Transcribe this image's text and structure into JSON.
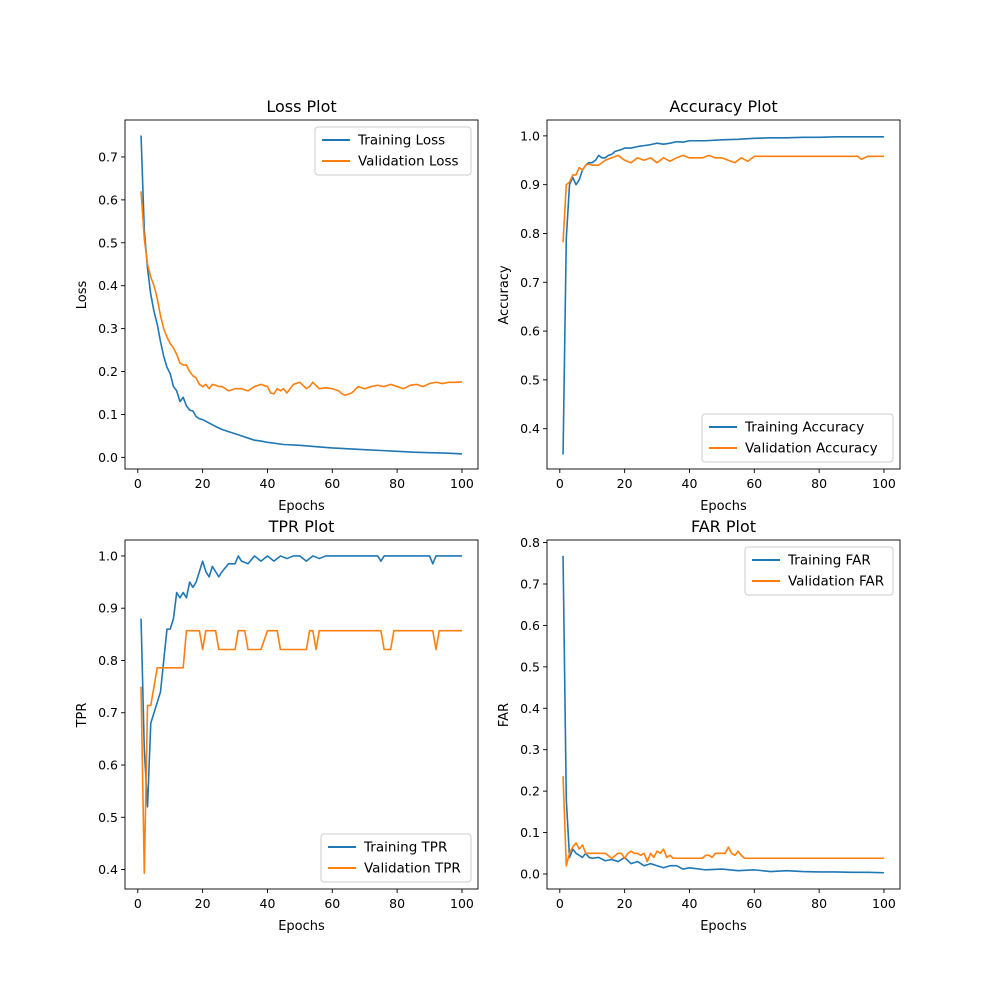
{
  "figure": {
    "background": "#ffffff"
  },
  "colors": {
    "training": "#1f77b4",
    "validation": "#ff7f0e"
  },
  "chart_data": [
    {
      "type": "line",
      "title": "Loss Plot",
      "xlabel": "Epochs",
      "ylabel": "Loss",
      "xlim": [
        -3.95,
        104.95
      ],
      "ylim": [
        -0.0271,
        0.7861
      ],
      "xticks": [
        0,
        20,
        40,
        60,
        80,
        100
      ],
      "yticks": [
        0.0,
        0.1,
        0.2,
        0.3,
        0.4,
        0.5,
        0.6,
        0.7
      ],
      "ytick_labels": [
        "0.0",
        "0.1",
        "0.2",
        "0.3",
        "0.4",
        "0.5",
        "0.6",
        "0.7"
      ],
      "legend": "top-right",
      "grid": false,
      "series": [
        {
          "name": "Training Loss",
          "color": "#1f77b4",
          "x": [
            1,
            2,
            3,
            4,
            5,
            6,
            7,
            8,
            9,
            10,
            11,
            12,
            13,
            14,
            15,
            16,
            17,
            18,
            19,
            20,
            22,
            24,
            26,
            28,
            30,
            32,
            34,
            36,
            38,
            40,
            45,
            50,
            55,
            60,
            65,
            70,
            75,
            80,
            85,
            90,
            95,
            100
          ],
          "y": [
            0.75,
            0.53,
            0.44,
            0.38,
            0.34,
            0.31,
            0.27,
            0.235,
            0.21,
            0.195,
            0.165,
            0.155,
            0.13,
            0.14,
            0.12,
            0.11,
            0.108,
            0.095,
            0.09,
            0.088,
            0.08,
            0.072,
            0.065,
            0.06,
            0.055,
            0.05,
            0.045,
            0.04,
            0.038,
            0.035,
            0.03,
            0.028,
            0.025,
            0.022,
            0.02,
            0.018,
            0.016,
            0.014,
            0.012,
            0.011,
            0.01,
            0.008
          ]
        },
        {
          "name": "Validation Loss",
          "color": "#ff7f0e",
          "x": [
            1,
            2,
            3,
            4,
            5,
            6,
            7,
            8,
            9,
            10,
            11,
            12,
            13,
            14,
            15,
            16,
            17,
            18,
            19,
            20,
            21,
            22,
            23,
            24,
            25,
            26,
            28,
            30,
            32,
            34,
            36,
            38,
            40,
            41,
            42,
            43,
            44,
            45,
            46,
            47,
            48,
            50,
            52,
            53,
            54,
            56,
            58,
            60,
            62,
            63,
            64,
            66,
            68,
            70,
            72,
            74,
            76,
            78,
            80,
            82,
            84,
            86,
            88,
            90,
            92,
            94,
            96,
            98,
            100
          ],
          "y": [
            0.62,
            0.51,
            0.45,
            0.42,
            0.4,
            0.37,
            0.33,
            0.3,
            0.28,
            0.265,
            0.255,
            0.24,
            0.22,
            0.215,
            0.215,
            0.2,
            0.19,
            0.185,
            0.17,
            0.165,
            0.17,
            0.16,
            0.17,
            0.168,
            0.165,
            0.165,
            0.155,
            0.16,
            0.16,
            0.155,
            0.165,
            0.17,
            0.165,
            0.15,
            0.148,
            0.16,
            0.155,
            0.16,
            0.15,
            0.16,
            0.17,
            0.175,
            0.16,
            0.165,
            0.175,
            0.16,
            0.162,
            0.16,
            0.155,
            0.148,
            0.145,
            0.15,
            0.165,
            0.16,
            0.165,
            0.168,
            0.165,
            0.17,
            0.165,
            0.16,
            0.168,
            0.17,
            0.165,
            0.172,
            0.175,
            0.172,
            0.175,
            0.175,
            0.176
          ]
        }
      ]
    },
    {
      "type": "line",
      "title": "Accuracy Plot",
      "xlabel": "Epochs",
      "ylabel": "Accuracy",
      "xlim": [
        -3.95,
        104.95
      ],
      "ylim": [
        0.3174,
        1.0325
      ],
      "xticks": [
        0,
        20,
        40,
        60,
        80,
        100
      ],
      "yticks": [
        0.4,
        0.5,
        0.6,
        0.7,
        0.8,
        0.9,
        1.0
      ],
      "ytick_labels": [
        "0.4",
        "0.5",
        "0.6",
        "0.7",
        "0.8",
        "0.9",
        "1.0"
      ],
      "legend": "bottom-right",
      "grid": false,
      "series": [
        {
          "name": "Training Accuracy",
          "color": "#1f77b4",
          "x": [
            1,
            2,
            3,
            4,
            5,
            6,
            7,
            8,
            9,
            10,
            11,
            12,
            13,
            14,
            15,
            16,
            17,
            18,
            19,
            20,
            22,
            24,
            26,
            28,
            30,
            32,
            34,
            36,
            38,
            40,
            45,
            50,
            55,
            60,
            65,
            70,
            75,
            80,
            85,
            90,
            95,
            100
          ],
          "y": [
            0.347,
            0.79,
            0.9,
            0.915,
            0.9,
            0.91,
            0.93,
            0.94,
            0.945,
            0.945,
            0.95,
            0.96,
            0.955,
            0.955,
            0.96,
            0.962,
            0.968,
            0.97,
            0.972,
            0.975,
            0.975,
            0.978,
            0.98,
            0.982,
            0.985,
            0.983,
            0.985,
            0.988,
            0.987,
            0.99,
            0.99,
            0.992,
            0.993,
            0.995,
            0.996,
            0.996,
            0.997,
            0.997,
            0.998,
            0.998,
            0.998,
            0.998
          ]
        },
        {
          "name": "Validation Accuracy",
          "color": "#ff7f0e",
          "x": [
            1,
            2,
            3,
            4,
            5,
            6,
            7,
            8,
            9,
            10,
            12,
            14,
            16,
            18,
            19,
            20,
            22,
            24,
            26,
            28,
            30,
            32,
            34,
            36,
            38,
            40,
            42,
            44,
            46,
            48,
            50,
            52,
            54,
            56,
            58,
            60,
            65,
            70,
            75,
            80,
            85,
            90,
            92,
            93,
            95,
            100
          ],
          "y": [
            0.782,
            0.9,
            0.905,
            0.92,
            0.92,
            0.935,
            0.93,
            0.94,
            0.942,
            0.94,
            0.94,
            0.95,
            0.955,
            0.96,
            0.955,
            0.95,
            0.945,
            0.955,
            0.95,
            0.955,
            0.945,
            0.955,
            0.948,
            0.955,
            0.96,
            0.955,
            0.955,
            0.955,
            0.96,
            0.955,
            0.955,
            0.95,
            0.945,
            0.955,
            0.948,
            0.958,
            0.958,
            0.958,
            0.958,
            0.958,
            0.958,
            0.958,
            0.958,
            0.952,
            0.958,
            0.958
          ]
        }
      ]
    },
    {
      "type": "line",
      "title": "TPR Plot",
      "xlabel": "Epochs",
      "ylabel": "TPR",
      "xlim": [
        -3.95,
        104.95
      ],
      "ylim": [
        0.3628,
        1.0305
      ],
      "xticks": [
        0,
        20,
        40,
        60,
        80,
        100
      ],
      "yticks": [
        0.4,
        0.5,
        0.6,
        0.7,
        0.8,
        0.9,
        1.0
      ],
      "ytick_labels": [
        "0.4",
        "0.5",
        "0.6",
        "0.7",
        "0.8",
        "0.9",
        "1.0"
      ],
      "legend": "bottom-right",
      "grid": false,
      "series": [
        {
          "name": "Training TPR",
          "color": "#1f77b4",
          "x": [
            1,
            2,
            3,
            4,
            5,
            6,
            7,
            8,
            9,
            10,
            11,
            12,
            13,
            14,
            15,
            16,
            17,
            18,
            19,
            20,
            21,
            22,
            23,
            24,
            25,
            26,
            28,
            30,
            31,
            32,
            34,
            36,
            38,
            40,
            42,
            44,
            46,
            48,
            50,
            52,
            54,
            56,
            58,
            60,
            65,
            70,
            74,
            75,
            76,
            80,
            85,
            90,
            91,
            92,
            95,
            100
          ],
          "y": [
            0.88,
            0.63,
            0.52,
            0.68,
            0.7,
            0.72,
            0.74,
            0.8,
            0.86,
            0.86,
            0.88,
            0.93,
            0.92,
            0.93,
            0.92,
            0.95,
            0.94,
            0.95,
            0.97,
            0.99,
            0.97,
            0.96,
            0.98,
            0.97,
            0.96,
            0.97,
            0.985,
            0.985,
            1.0,
            0.99,
            0.985,
            1.0,
            0.99,
            1.0,
            0.99,
            1.0,
            0.995,
            1.0,
            1.0,
            0.99,
            1.0,
            0.995,
            1.0,
            1.0,
            1.0,
            1.0,
            1.0,
            0.99,
            1.0,
            1.0,
            1.0,
            1.0,
            0.985,
            1.0,
            1.0,
            1.0
          ]
        },
        {
          "name": "Validation TPR",
          "color": "#ff7f0e",
          "x": [
            1,
            2,
            3,
            4,
            5,
            6,
            7,
            8,
            9,
            10,
            11,
            12,
            13,
            14,
            15,
            16,
            17,
            18,
            19,
            20,
            21,
            22,
            23,
            24,
            25,
            26,
            28,
            30,
            31,
            32,
            33,
            34,
            35,
            36,
            38,
            40,
            41,
            42,
            43,
            44,
            45,
            46,
            48,
            50,
            52,
            53,
            54,
            55,
            56,
            58,
            60,
            65,
            70,
            75,
            76,
            77,
            78,
            79,
            80,
            85,
            90,
            91,
            92,
            93,
            95,
            100
          ],
          "y": [
            0.75,
            0.393,
            0.714,
            0.714,
            0.75,
            0.786,
            0.786,
            0.786,
            0.786,
            0.786,
            0.786,
            0.786,
            0.786,
            0.786,
            0.857,
            0.857,
            0.857,
            0.857,
            0.857,
            0.821,
            0.857,
            0.857,
            0.857,
            0.857,
            0.821,
            0.821,
            0.821,
            0.821,
            0.857,
            0.857,
            0.857,
            0.821,
            0.821,
            0.821,
            0.821,
            0.857,
            0.857,
            0.857,
            0.857,
            0.821,
            0.821,
            0.821,
            0.821,
            0.821,
            0.821,
            0.857,
            0.857,
            0.821,
            0.857,
            0.857,
            0.857,
            0.857,
            0.857,
            0.857,
            0.821,
            0.821,
            0.821,
            0.857,
            0.857,
            0.857,
            0.857,
            0.857,
            0.821,
            0.857,
            0.857,
            0.857
          ]
        }
      ]
    },
    {
      "type": "line",
      "title": "FAR Plot",
      "xlabel": "Epochs",
      "ylabel": "FAR",
      "xlim": [
        -3.95,
        104.95
      ],
      "ylim": [
        -0.0362,
        0.8062
      ],
      "xticks": [
        0,
        20,
        40,
        60,
        80,
        100
      ],
      "yticks": [
        0.0,
        0.1,
        0.2,
        0.3,
        0.4,
        0.5,
        0.6,
        0.7,
        0.8
      ],
      "ytick_labels": [
        "0.0",
        "0.1",
        "0.2",
        "0.3",
        "0.4",
        "0.5",
        "0.6",
        "0.7",
        "0.8"
      ],
      "legend": "top-right",
      "grid": false,
      "series": [
        {
          "name": "Training FAR",
          "color": "#1f77b4",
          "x": [
            1,
            2,
            3,
            4,
            5,
            6,
            7,
            8,
            9,
            10,
            12,
            14,
            16,
            18,
            20,
            22,
            24,
            26,
            28,
            30,
            32,
            34,
            36,
            38,
            40,
            45,
            50,
            55,
            60,
            65,
            70,
            75,
            80,
            85,
            90,
            95,
            100
          ],
          "y": [
            0.768,
            0.18,
            0.04,
            0.06,
            0.05,
            0.045,
            0.04,
            0.05,
            0.04,
            0.038,
            0.04,
            0.032,
            0.035,
            0.03,
            0.04,
            0.025,
            0.03,
            0.02,
            0.025,
            0.02,
            0.015,
            0.02,
            0.02,
            0.012,
            0.015,
            0.01,
            0.012,
            0.008,
            0.01,
            0.006,
            0.008,
            0.006,
            0.005,
            0.005,
            0.004,
            0.004,
            0.003
          ]
        },
        {
          "name": "Validation FAR",
          "color": "#ff7f0e",
          "x": [
            1,
            2,
            3,
            4,
            5,
            6,
            7,
            8,
            9,
            10,
            12,
            14,
            16,
            18,
            19,
            20,
            21,
            22,
            23,
            24,
            25,
            26,
            27,
            28,
            29,
            30,
            31,
            32,
            33,
            34,
            35,
            36,
            40,
            44,
            45,
            46,
            47,
            48,
            50,
            51,
            52,
            53,
            54,
            55,
            56,
            57,
            58,
            60,
            65,
            70,
            75,
            80,
            85,
            90,
            95,
            100
          ],
          "y": [
            0.236,
            0.02,
            0.05,
            0.065,
            0.075,
            0.06,
            0.07,
            0.05,
            0.05,
            0.05,
            0.05,
            0.05,
            0.038,
            0.05,
            0.05,
            0.038,
            0.05,
            0.055,
            0.05,
            0.05,
            0.045,
            0.05,
            0.03,
            0.05,
            0.04,
            0.055,
            0.05,
            0.06,
            0.04,
            0.045,
            0.038,
            0.038,
            0.038,
            0.038,
            0.045,
            0.045,
            0.04,
            0.05,
            0.05,
            0.05,
            0.065,
            0.05,
            0.045,
            0.055,
            0.045,
            0.038,
            0.038,
            0.038,
            0.038,
            0.038,
            0.038,
            0.038,
            0.038,
            0.038,
            0.038,
            0.038
          ]
        }
      ]
    }
  ]
}
